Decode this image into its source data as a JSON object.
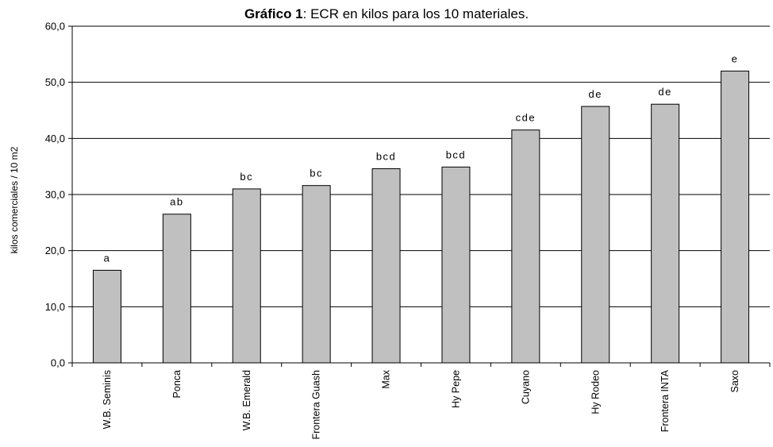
{
  "chart_data": {
    "type": "bar",
    "title_bold": "Gráfico 1",
    "title_rest": ": ECR en kilos para los 10 materiales.",
    "xlabel": "",
    "ylabel": "kilos comerciales / 10 m2",
    "ylim": [
      0,
      60
    ],
    "yticks": [
      "0,0",
      "10,0",
      "20,0",
      "30,0",
      "40,0",
      "50,0",
      "60,0"
    ],
    "grid": true,
    "categories": [
      "W.B. Seminis",
      "Ponca",
      "W.B. Emerald",
      "Frontera Guash",
      "Max",
      "Hy Pepe",
      "Cuyano",
      "Hy Rodeo",
      "Frontera INTA",
      "Saxo"
    ],
    "values": [
      16.5,
      26.5,
      31.0,
      31.6,
      34.6,
      34.9,
      41.5,
      45.7,
      46.1,
      52.0
    ],
    "significance_labels": [
      "a",
      "ab",
      "bc",
      "bc",
      "bcd",
      "bcd",
      "cde",
      "de",
      "de",
      "e"
    ],
    "bar_color": "#c0c0c0"
  }
}
